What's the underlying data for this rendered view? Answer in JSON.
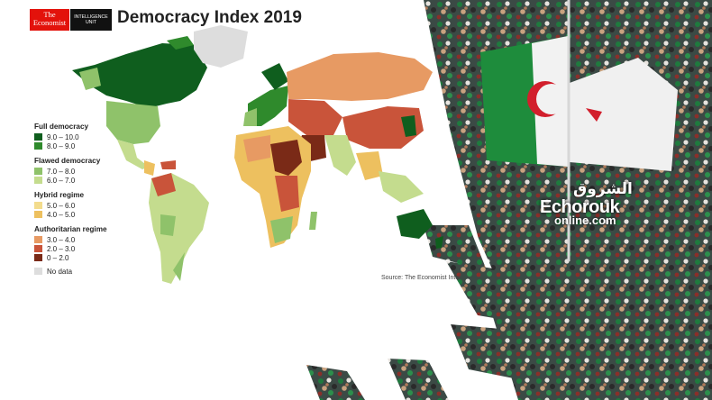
{
  "header": {
    "logo_line1": "The",
    "logo_line2": "Economist",
    "eiu_line1": "INTELLIGENCE",
    "eiu_line2": "UNIT",
    "title": "Democracy Index 2019"
  },
  "legend": [
    {
      "category": "Full democracy",
      "items": [
        {
          "label": "9.0 – 10.0",
          "color": "#0f5e1e"
        },
        {
          "label": "8.0 – 9.0",
          "color": "#2f8a2c"
        }
      ]
    },
    {
      "category": "Flawed democracy",
      "items": [
        {
          "label": "7.0 – 8.0",
          "color": "#8fc26a"
        },
        {
          "label": "6.0 – 7.0",
          "color": "#c4dc8e"
        }
      ]
    },
    {
      "category": "Hybrid regime",
      "items": [
        {
          "label": "5.0 – 6.0",
          "color": "#f3dc8d"
        },
        {
          "label": "4.0 – 5.0",
          "color": "#edc05f"
        }
      ]
    },
    {
      "category": "Authoritarian regime",
      "items": [
        {
          "label": "3.0 – 4.0",
          "color": "#e79a63"
        },
        {
          "label": "2.0 – 3.0",
          "color": "#c9543a"
        },
        {
          "label": "0 – 2.0",
          "color": "#7a2a17"
        }
      ]
    },
    {
      "category": "",
      "items": [
        {
          "label": "No data",
          "color": "#dddddd"
        }
      ]
    }
  ],
  "source": "Source: The Economist Intel",
  "watermark": {
    "arabic": "الشروق",
    "brand": "Echorouk",
    "online": "online.com",
    "accent": "#3fa9f5"
  }
}
